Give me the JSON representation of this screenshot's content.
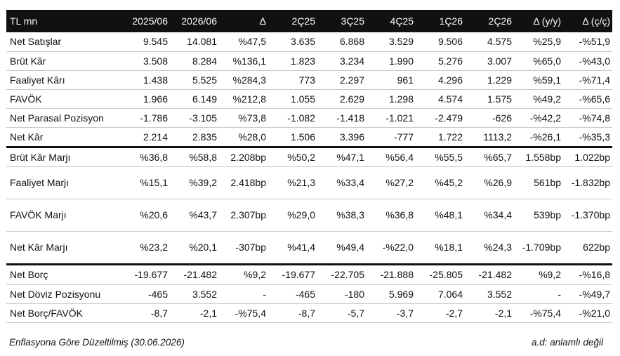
{
  "table": {
    "headers": [
      "TL mn",
      "2025/06",
      "2026/06",
      "Δ",
      "2Ç25",
      "3Ç25",
      "4Ç25",
      "1Ç26",
      "2Ç26",
      "Δ (y/y)",
      "Δ (ç/ç)"
    ],
    "rows": [
      [
        "Net Satışlar",
        "9.545",
        "14.081",
        "%47,5",
        "3.635",
        "6.868",
        "3.529",
        "9.506",
        "4.575",
        "%25,9",
        "-%51,9"
      ],
      [
        "Brüt Kâr",
        "3.508",
        "8.284",
        "%136,1",
        "1.823",
        "3.234",
        "1.990",
        "5.276",
        "3.007",
        "%65,0",
        "-%43,0"
      ],
      [
        "Faaliyet Kârı",
        "1.438",
        "5.525",
        "%284,3",
        "773",
        "2.297",
        "961",
        "4.296",
        "1.229",
        "%59,1",
        "-%71,4"
      ],
      [
        "FAVÖK",
        "1.966",
        "6.149",
        "%212,8",
        "1.055",
        "2.629",
        "1.298",
        "4.574",
        "1.575",
        "%49,2",
        "-%65,6"
      ],
      [
        "Net Parasal Pozisyon",
        "-1.786",
        "-3.105",
        "%73,8",
        "-1.082",
        "-1.418",
        "-1.021",
        "-2.479",
        "-626",
        "-%42,2",
        "-%74,8"
      ],
      [
        "Net Kâr",
        "2.214",
        "2.835",
        "%28,0",
        "1.506",
        "3.396",
        "-777",
        "1.722",
        "1113,2",
        "-%26,1",
        "-%35,3"
      ],
      [
        "Brüt Kâr Marjı",
        "%36,8",
        "%58,8",
        "2.208bp",
        "%50,2",
        "%47,1",
        "%56,4",
        "%55,5",
        "%65,7",
        "1.558bp",
        "1.022bp"
      ],
      [
        "Faaliyet Marjı",
        "%15,1",
        "%39,2",
        "2.418bp",
        "%21,3",
        "%33,4",
        "%27,2",
        "%45,2",
        "%26,9",
        "561bp",
        "-1.832bp"
      ],
      [
        "FAVÖK Marjı",
        "%20,6",
        "%43,7",
        "2.307bp",
        "%29,0",
        "%38,3",
        "%36,8",
        "%48,1",
        "%34,4",
        "539bp",
        "-1.370bp"
      ],
      [
        "Net Kâr Marjı",
        "%23,2",
        "%20,1",
        "-307bp",
        "%41,4",
        "%49,4",
        "-%22,0",
        "%18,1",
        "%24,3",
        "-1.709bp",
        "622bp"
      ],
      [
        "Net Borç",
        "-19.677",
        "-21.482",
        "%9,2",
        "-19.677",
        "-22.705",
        "-21.888",
        "-25.805",
        "-21.482",
        "%9,2",
        "-%16,8"
      ],
      [
        "Net Döviz Pozisyonu",
        "-465",
        "3.552",
        "-",
        "-465",
        "-180",
        "5.969",
        "7.064",
        "3.552",
        "-",
        "-%49,7"
      ],
      [
        "Net Borç/FAVÖK",
        "-8,7",
        "-2,1",
        "-%75,4",
        "-8,7",
        "-5,7",
        "-3,7",
        "-2,7",
        "-2,1",
        "-%75,4",
        "-%21,0"
      ]
    ]
  },
  "footer": {
    "note_left": "Enflasyona Göre Düzeltilmiş (30.06.2026)",
    "note_right": "a.d: anlamlı değil"
  }
}
